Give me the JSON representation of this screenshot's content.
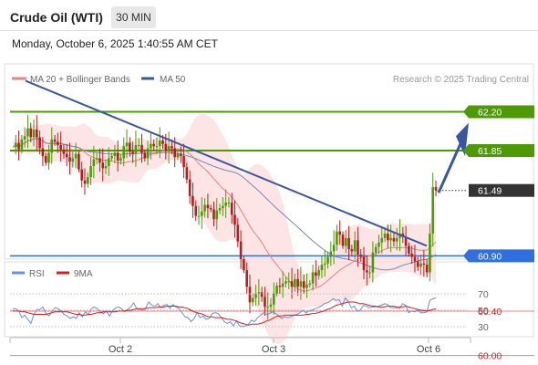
{
  "header": {
    "title": "Crude Oil (WTI)",
    "interval": "30 MIN",
    "datetime": "Monday, October 6, 2025 1:40:55 AM CET"
  },
  "legend": {
    "ma20_label": "MA 20 + Bollinger Bands",
    "ma50_label": "MA 50",
    "copyright": "Research © 2025 Trading Central",
    "rsi_label": "RSI",
    "rsi_ma_label": "9MA"
  },
  "colors": {
    "ma20": "#f08080",
    "ma50": "#3a56a0",
    "bollinger_fill": "#fcdcdc",
    "resistance_green": "#4e9a06",
    "support_blue": "#2f6fe0",
    "support_red": "#f08080",
    "trendline": "#3a56a0",
    "candle_up": "#4e9a06",
    "candle_down": "#b71c1c",
    "current_price_bg": "#333333",
    "rsi_line": "#6a8ee0",
    "rsi_ma_line": "#d62020"
  },
  "chart_data": [
    {
      "type": "candlestick",
      "title": "Crude Oil (WTI)",
      "x_ticks": [
        "Oct 2",
        "Oct 3",
        "Oct 6"
      ],
      "ylim": [
        59.8,
        62.6
      ],
      "grid": false,
      "current_price": 61.49,
      "price_levels": [
        {
          "value": 62.2,
          "label": "62.20",
          "kind": "resistance"
        },
        {
          "value": 61.85,
          "label": "61.85",
          "kind": "resistance"
        },
        {
          "value": 61.49,
          "label": "61.49",
          "kind": "current"
        },
        {
          "value": 60.9,
          "label": "60.90",
          "kind": "support"
        },
        {
          "value": 60.4,
          "label": "60.40",
          "kind": "support"
        },
        {
          "value": 60.0,
          "label": "60.00",
          "kind": "support"
        }
      ],
      "series": [
        {
          "name": "MA 20 + Bollinger Bands"
        },
        {
          "name": "MA 50"
        }
      ],
      "close_path": [
        61.88,
        61.92,
        61.86,
        61.95,
        61.98,
        62.05,
        61.97,
        62.04,
        61.97,
        61.87,
        61.8,
        61.74,
        61.83,
        61.95,
        61.93,
        61.9,
        61.86,
        61.82,
        61.79,
        61.75,
        61.78,
        61.82,
        61.68,
        61.58,
        61.55,
        61.61,
        61.71,
        61.77,
        61.78,
        61.74,
        61.69,
        61.71,
        61.78,
        61.8,
        61.83,
        61.76,
        61.78,
        61.89,
        61.92,
        61.84,
        61.82,
        61.9,
        61.9,
        61.83,
        61.78,
        61.87,
        61.91,
        61.89,
        61.89,
        61.94,
        61.91,
        61.85,
        61.89,
        61.87,
        61.79,
        61.82,
        61.8,
        61.7,
        61.59,
        61.44,
        61.35,
        61.26,
        61.26,
        61.3,
        61.36,
        61.33,
        61.32,
        61.23,
        61.31,
        61.33,
        61.35,
        61.38,
        61.38,
        61.27,
        61.18,
        61.03,
        60.87,
        60.77,
        60.62,
        60.48,
        60.52,
        60.56,
        60.57,
        60.53,
        60.44,
        60.44,
        60.46,
        60.56,
        60.63,
        60.62,
        60.65,
        60.67,
        60.67,
        60.62,
        60.69,
        60.62,
        60.67,
        60.61,
        60.64,
        60.65,
        60.75,
        60.72,
        60.77,
        60.82,
        60.83,
        60.89,
        60.94,
        61.0,
        61.12,
        61.09,
        60.99,
        61.06,
        60.96,
        60.94,
        61.04,
        60.91,
        60.89,
        60.77,
        60.75,
        60.75,
        60.93,
        60.98,
        61.02,
        61.06,
        61.1,
        61.04,
        61.06,
        61.03,
        61.06,
        61.1,
        61.07,
        60.99,
        60.92,
        60.89,
        60.85,
        60.8,
        60.83,
        60.82,
        60.75,
        61.1,
        61.52,
        61.49
      ],
      "rsi": {
        "name": "RSI",
        "ma_name": "9MA",
        "levels": [
          70,
          50,
          30
        ],
        "ylim": [
          20,
          80
        ],
        "values": [
          52,
          52,
          49,
          41,
          44,
          39,
          34,
          45,
          51,
          51,
          54,
          46,
          43,
          49,
          53,
          52,
          49,
          45,
          43,
          40,
          42,
          40,
          47,
          42,
          48,
          45,
          52,
          54,
          52,
          48,
          46,
          49,
          43,
          49,
          53,
          54,
          52,
          48,
          51,
          54,
          59,
          52,
          51,
          50,
          53,
          60,
          56,
          55,
          58,
          53,
          56,
          57,
          52,
          57,
          54,
          52,
          47,
          42,
          41,
          36,
          40,
          47,
          41,
          43,
          39,
          40,
          46,
          47,
          46,
          41,
          36,
          34,
          36,
          31,
          37,
          31,
          30,
          31,
          33,
          38,
          36,
          41,
          44,
          47,
          45,
          46,
          48,
          46,
          43,
          40,
          42,
          41,
          42,
          44,
          45,
          47,
          50,
          47,
          49,
          50,
          52,
          53,
          55,
          58,
          59,
          61,
          64,
          62,
          63,
          55,
          65,
          61,
          53,
          55,
          49,
          50,
          56,
          55,
          53,
          54,
          54,
          55,
          56,
          58,
          57,
          53,
          53,
          53,
          52,
          58,
          56,
          47,
          49,
          48,
          50,
          47,
          47,
          48,
          62,
          64,
          65
        ],
        "ma_values": [
          49,
          49,
          49,
          48,
          48,
          47,
          46,
          45,
          45,
          45,
          45,
          45,
          46,
          47,
          48,
          48,
          48,
          48,
          48,
          47,
          46,
          45,
          45,
          44,
          44,
          45,
          45,
          46,
          47,
          47,
          48,
          48,
          48,
          48,
          48,
          49,
          49,
          49,
          50,
          50,
          51,
          52,
          52,
          52,
          52,
          53,
          53,
          53,
          54,
          54,
          54,
          55,
          55,
          55,
          55,
          54,
          54,
          53,
          52,
          50,
          48,
          47,
          46,
          45,
          43,
          42,
          42,
          41,
          41,
          41,
          40,
          39,
          39,
          38,
          37,
          35,
          34,
          33,
          32,
          33,
          33,
          33,
          34,
          35,
          37,
          38,
          40,
          42,
          43,
          43,
          44,
          44,
          44,
          44,
          44,
          44,
          44,
          45,
          45,
          46,
          46,
          47,
          48,
          49,
          51,
          52,
          54,
          56,
          57,
          58,
          59,
          60,
          60,
          60,
          59,
          58,
          58,
          57,
          56,
          55,
          55,
          54,
          54,
          54,
          55,
          55,
          55,
          54,
          54,
          54,
          55,
          54,
          53,
          52,
          51,
          50,
          50,
          49,
          50,
          51,
          52
        ]
      }
    }
  ]
}
